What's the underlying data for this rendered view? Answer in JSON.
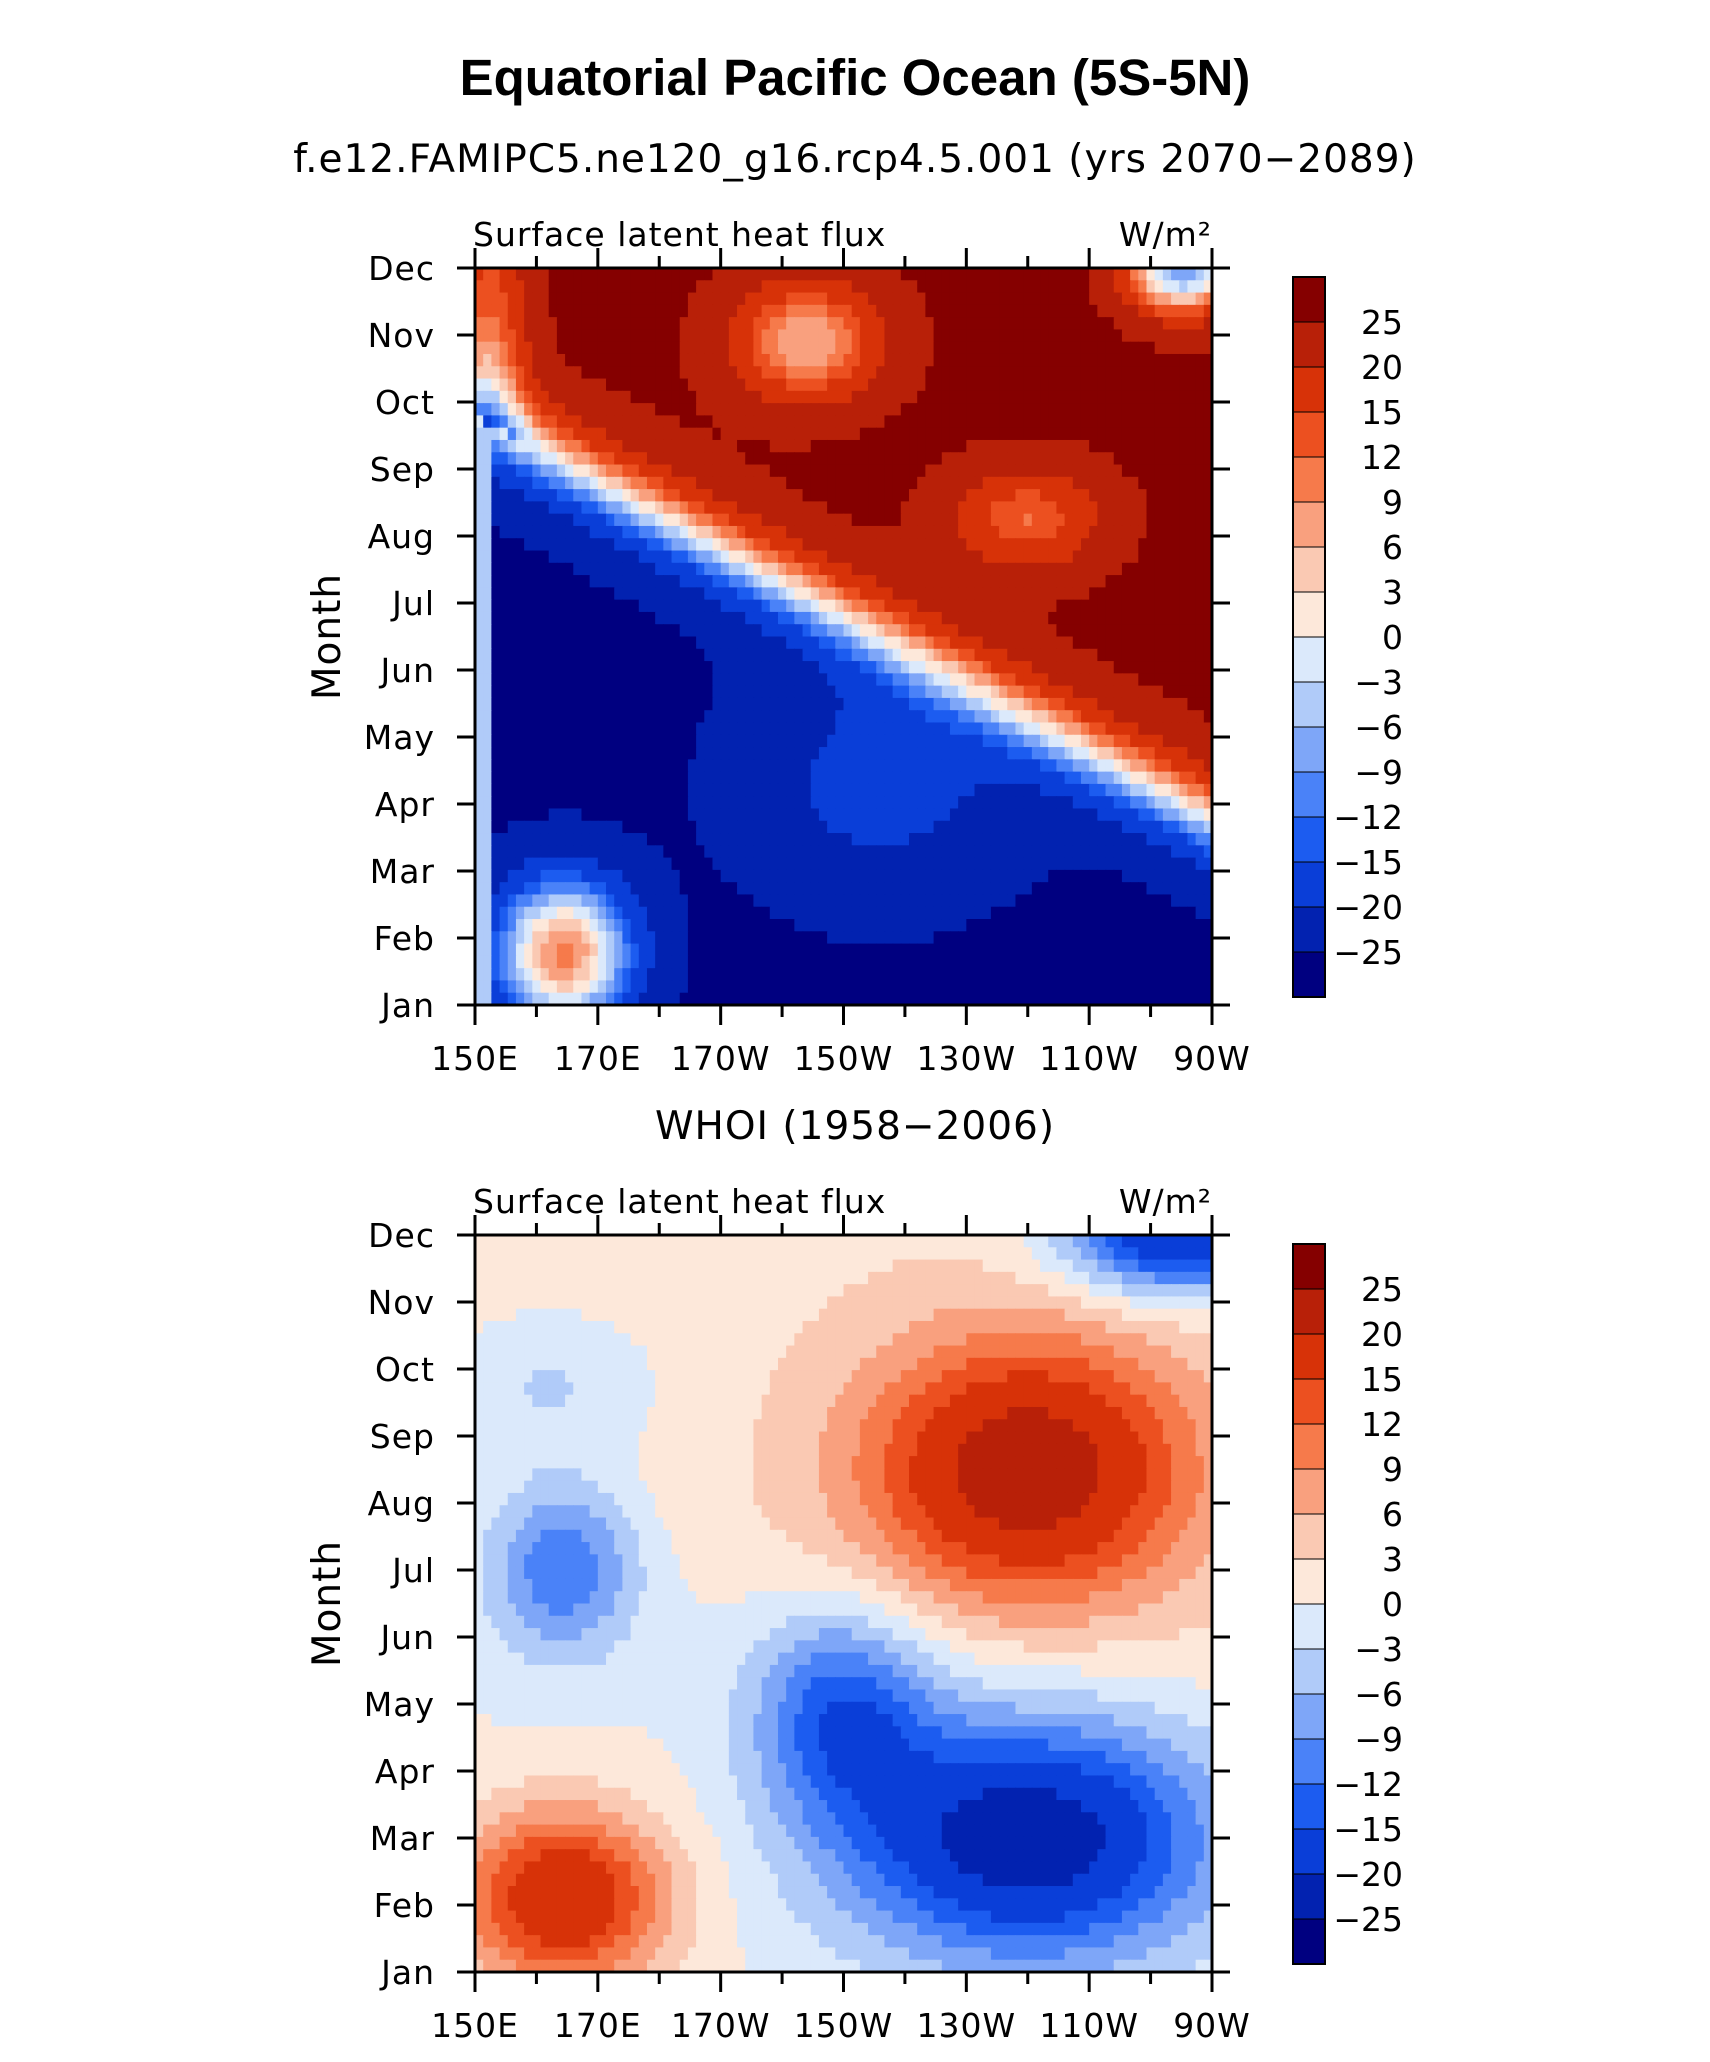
{
  "title": "Equatorial Pacific Ocean (5S-5N)",
  "units_label": "W/m²",
  "chart_data": [
    {
      "type": "heatmap",
      "subtitle": "f.e12.FAMIPC5.ne120_g16.rcp4.5.001 (yrs 2070−2089)",
      "left_label": "Surface latent heat flux",
      "right_label": "W/m²",
      "ylabel": "Month",
      "xlabel": "",
      "x_ticks": [
        "150E",
        "170E",
        "170W",
        "150W",
        "130W",
        "110W",
        "90W"
      ],
      "x_tick_values": [
        150,
        170,
        190,
        210,
        230,
        250,
        270
      ],
      "y_ticks": [
        "Jan",
        "Feb",
        "Mar",
        "Apr",
        "May",
        "Jun",
        "Jul",
        "Aug",
        "Sep",
        "Oct",
        "Nov",
        "Dec"
      ],
      "xlim": [
        150,
        270
      ],
      "ylim": [
        1,
        12
      ],
      "colorbar_levels": [
        -25,
        -20,
        -15,
        -12,
        -9,
        -6,
        -3,
        0,
        3,
        6,
        9,
        12,
        15,
        20,
        25
      ]
    },
    {
      "type": "heatmap",
      "subtitle": "WHOI (1958−2006)",
      "left_label": "Surface latent heat flux",
      "right_label": "W/m²",
      "ylabel": "Month",
      "xlabel": "",
      "x_ticks": [
        "150E",
        "170E",
        "170W",
        "150W",
        "130W",
        "110W",
        "90W"
      ],
      "x_tick_values": [
        150,
        170,
        190,
        210,
        230,
        250,
        270
      ],
      "y_ticks": [
        "Jan",
        "Feb",
        "Mar",
        "Apr",
        "May",
        "Jun",
        "Jul",
        "Aug",
        "Sep",
        "Oct",
        "Nov",
        "Dec"
      ],
      "xlim": [
        150,
        270
      ],
      "ylim": [
        1,
        12
      ],
      "colorbar_levels": [
        -25,
        -20,
        -15,
        -12,
        -9,
        -6,
        -3,
        0,
        3,
        6,
        9,
        12,
        15,
        20,
        25
      ]
    }
  ],
  "colors": [
    "#000080",
    "#0222b0",
    "#0a3ed8",
    "#1c5cf0",
    "#4a82f8",
    "#7ea6f8",
    "#b0cbf9",
    "#dbe9fb",
    "#fde8da",
    "#fac9b3",
    "#f9a07e",
    "#f67a4b",
    "#ec5020",
    "#d73208",
    "#b82008",
    "#850000"
  ]
}
